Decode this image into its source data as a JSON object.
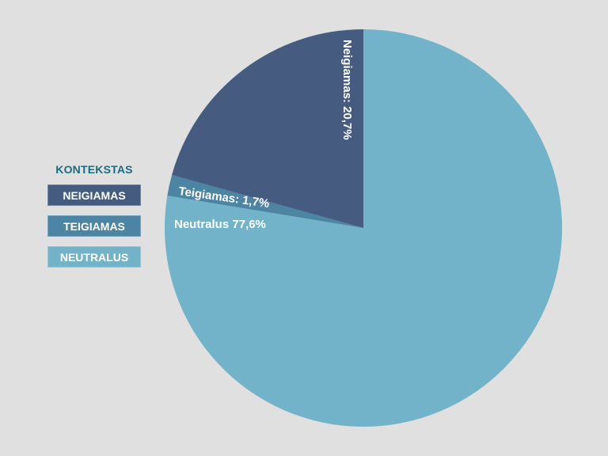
{
  "legend": {
    "title": "KONTEKSTAS",
    "items": [
      {
        "label": "NEIGIAMAS",
        "color": "#455c80"
      },
      {
        "label": "TEIGIAMAS",
        "color": "#4c85a3"
      },
      {
        "label": "NEUTRALUS",
        "color": "#72b3c9"
      }
    ]
  },
  "chart_data": {
    "type": "pie",
    "title": "",
    "start": "top, clockwise from 12 o'clock",
    "slices": [
      {
        "name": "Neutralus",
        "value": 77.6,
        "label": "Neutralus 77,6%",
        "color": "#72b3c9"
      },
      {
        "name": "Teigiamas",
        "value": 1.7,
        "label": "Teigiamas: 1,7%",
        "color": "#4c85a3"
      },
      {
        "name": "Neigiamas",
        "value": 20.7,
        "label": "Neigiamas: 20,7%",
        "color": "#455c80"
      }
    ]
  }
}
